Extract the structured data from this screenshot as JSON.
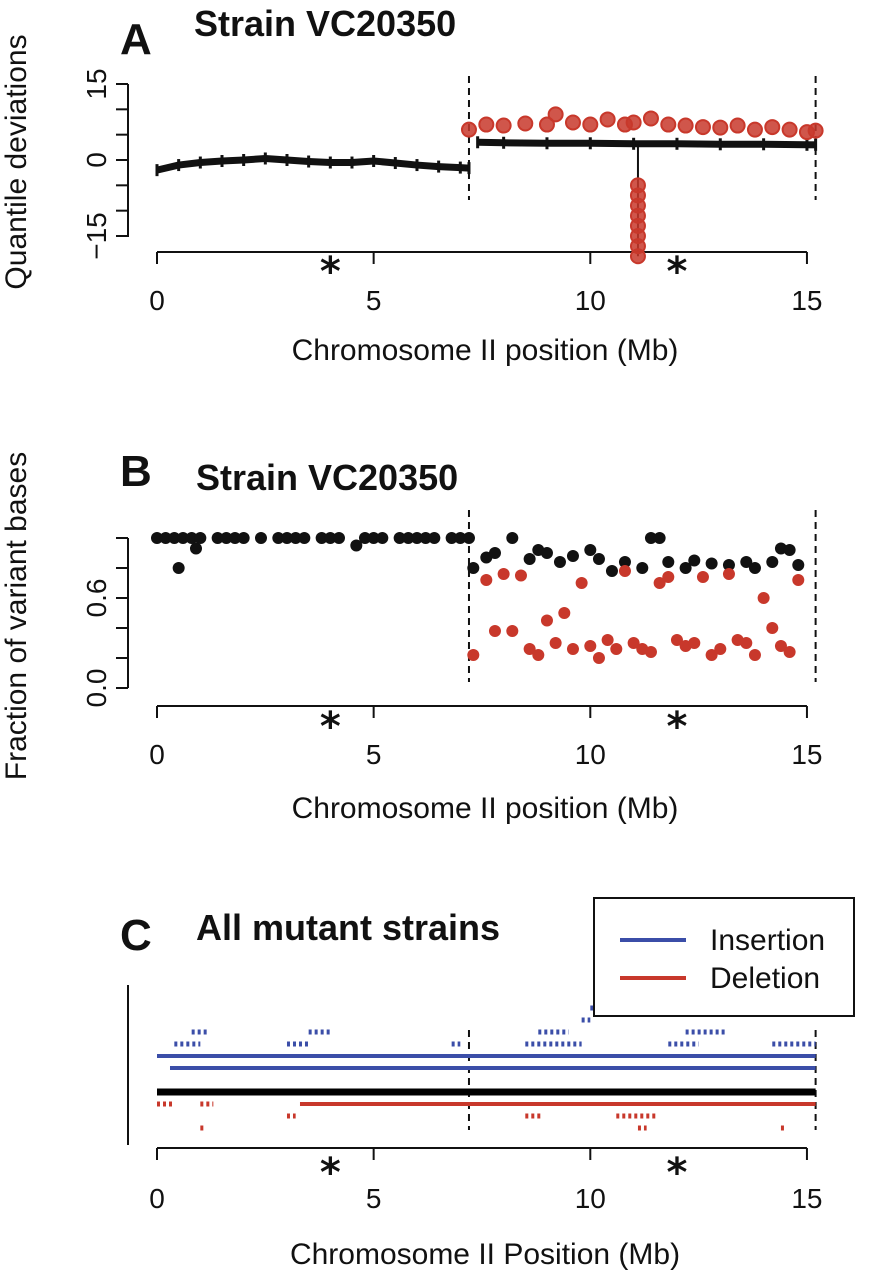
{
  "chart_data": [
    {
      "panel": "A",
      "type": "scatter",
      "title": "Strain VC20350",
      "xlabel": "Chromosome II position (Mb)",
      "ylabel": "Quantile deviations",
      "x_ticks": [
        "0",
        "5",
        "10",
        "15"
      ],
      "y_ticks": [
        "15",
        "0",
        "−15"
      ],
      "xlim": [
        0,
        15.5
      ],
      "ylim": [
        -15,
        15
      ],
      "region_boundaries": [
        7.2,
        15.2
      ],
      "stars_at": [
        4.0,
        12.0
      ],
      "series": [
        {
          "color": "#111111",
          "values": [
            [
              0.0,
              -2.0
            ],
            [
              0.5,
              -1.0
            ],
            [
              1.0,
              -0.5
            ],
            [
              1.5,
              -0.2
            ],
            [
              2.0,
              0.0
            ],
            [
              2.5,
              0.3
            ],
            [
              3.0,
              0.0
            ],
            [
              3.5,
              -0.3
            ],
            [
              4.0,
              -0.5
            ],
            [
              4.5,
              -0.5
            ],
            [
              5.0,
              -0.2
            ],
            [
              5.5,
              -0.6
            ],
            [
              6.0,
              -1.0
            ],
            [
              6.5,
              -1.3
            ],
            [
              7.0,
              -1.5
            ],
            [
              7.2,
              -1.6
            ],
            [
              7.4,
              3.5
            ],
            [
              8.0,
              3.4
            ],
            [
              9.0,
              3.3
            ],
            [
              10.0,
              3.3
            ],
            [
              11.0,
              3.2
            ],
            [
              12.0,
              3.2
            ],
            [
              13.0,
              3.1
            ],
            [
              14.0,
              3.1
            ],
            [
              15.0,
              3.0
            ],
            [
              15.2,
              3.0
            ]
          ]
        },
        {
          "color": "#c8382b",
          "values": [
            [
              7.2,
              6.0
            ],
            [
              7.6,
              7.0
            ],
            [
              8.0,
              6.8
            ],
            [
              8.5,
              7.2
            ],
            [
              9.0,
              7.0
            ],
            [
              9.2,
              9.0
            ],
            [
              9.6,
              7.4
            ],
            [
              10.0,
              7.0
            ],
            [
              10.4,
              8.0
            ],
            [
              10.8,
              7.0
            ],
            [
              11.0,
              7.4
            ],
            [
              11.4,
              8.2
            ],
            [
              11.8,
              7.0
            ],
            [
              12.2,
              6.8
            ],
            [
              12.6,
              6.5
            ],
            [
              13.0,
              6.4
            ],
            [
              13.4,
              6.8
            ],
            [
              13.8,
              6.0
            ],
            [
              14.2,
              6.5
            ],
            [
              14.6,
              6.0
            ],
            [
              15.0,
              5.5
            ],
            [
              15.2,
              5.8
            ],
            [
              11.1,
              -5.0
            ],
            [
              11.1,
              -7.0
            ],
            [
              11.1,
              -9.0
            ],
            [
              11.1,
              -11.0
            ],
            [
              11.1,
              -13.0
            ],
            [
              11.1,
              -15.0
            ],
            [
              11.1,
              -17.0
            ],
            [
              11.1,
              -19.0
            ]
          ]
        }
      ]
    },
    {
      "panel": "B",
      "type": "scatter",
      "title": "Strain VC20350",
      "xlabel": "Chromosome II position (Mb)",
      "ylabel": "Fraction of variant bases",
      "x_ticks": [
        "0",
        "5",
        "10",
        "15"
      ],
      "y_ticks": [
        "0.0",
        "0.6"
      ],
      "xlim": [
        0,
        15.5
      ],
      "ylim": [
        0,
        1
      ],
      "region_boundaries": [
        7.2,
        15.2
      ],
      "stars_at": [
        4.0,
        12.0
      ],
      "series": [
        {
          "color": "#111111",
          "values": [
            [
              0.0,
              1.0
            ],
            [
              0.2,
              1.0
            ],
            [
              0.4,
              1.0
            ],
            [
              0.5,
              0.8
            ],
            [
              0.6,
              1.0
            ],
            [
              0.8,
              1.0
            ],
            [
              0.9,
              0.93
            ],
            [
              1.0,
              1.0
            ],
            [
              1.4,
              1.0
            ],
            [
              1.6,
              1.0
            ],
            [
              1.8,
              1.0
            ],
            [
              2.0,
              1.0
            ],
            [
              2.4,
              1.0
            ],
            [
              2.8,
              1.0
            ],
            [
              3.0,
              1.0
            ],
            [
              3.2,
              1.0
            ],
            [
              3.4,
              1.0
            ],
            [
              3.8,
              1.0
            ],
            [
              4.0,
              1.0
            ],
            [
              4.2,
              1.0
            ],
            [
              4.6,
              0.95
            ],
            [
              4.8,
              1.0
            ],
            [
              5.0,
              1.0
            ],
            [
              5.2,
              1.0
            ],
            [
              5.6,
              1.0
            ],
            [
              5.8,
              1.0
            ],
            [
              6.0,
              1.0
            ],
            [
              6.2,
              1.0
            ],
            [
              6.4,
              1.0
            ],
            [
              6.8,
              1.0
            ],
            [
              7.0,
              1.0
            ],
            [
              7.2,
              1.0
            ],
            [
              7.3,
              0.8
            ],
            [
              7.6,
              0.87
            ],
            [
              7.8,
              0.9
            ],
            [
              8.2,
              1.0
            ],
            [
              8.6,
              0.86
            ],
            [
              8.8,
              0.92
            ],
            [
              9.0,
              0.9
            ],
            [
              9.3,
              0.84
            ],
            [
              9.6,
              0.88
            ],
            [
              10.0,
              0.92
            ],
            [
              10.2,
              0.86
            ],
            [
              10.5,
              0.78
            ],
            [
              10.8,
              0.84
            ],
            [
              11.2,
              0.8
            ],
            [
              11.4,
              1.0
            ],
            [
              11.6,
              1.0
            ],
            [
              11.8,
              0.84
            ],
            [
              12.2,
              0.8
            ],
            [
              12.4,
              0.85
            ],
            [
              12.8,
              0.83
            ],
            [
              13.2,
              0.82
            ],
            [
              13.6,
              0.84
            ],
            [
              13.8,
              0.8
            ],
            [
              14.2,
              0.84
            ],
            [
              14.4,
              0.93
            ],
            [
              14.6,
              0.92
            ],
            [
              14.8,
              0.82
            ]
          ]
        },
        {
          "color": "#c8382b",
          "values": [
            [
              7.3,
              0.22
            ],
            [
              7.6,
              0.72
            ],
            [
              7.8,
              0.38
            ],
            [
              8.0,
              0.76
            ],
            [
              8.2,
              0.38
            ],
            [
              8.4,
              0.75
            ],
            [
              8.6,
              0.26
            ],
            [
              8.8,
              0.22
            ],
            [
              9.0,
              0.45
            ],
            [
              9.2,
              0.3
            ],
            [
              9.4,
              0.5
            ],
            [
              9.6,
              0.26
            ],
            [
              9.8,
              0.7
            ],
            [
              10.0,
              0.28
            ],
            [
              10.2,
              0.2
            ],
            [
              10.4,
              0.32
            ],
            [
              10.6,
              0.26
            ],
            [
              10.8,
              0.78
            ],
            [
              11.0,
              0.3
            ],
            [
              11.2,
              0.26
            ],
            [
              11.4,
              0.24
            ],
            [
              11.6,
              0.7
            ],
            [
              11.8,
              0.74
            ],
            [
              12.0,
              0.32
            ],
            [
              12.2,
              0.28
            ],
            [
              12.4,
              0.3
            ],
            [
              12.6,
              0.74
            ],
            [
              12.8,
              0.22
            ],
            [
              13.0,
              0.26
            ],
            [
              13.2,
              0.76
            ],
            [
              13.4,
              0.32
            ],
            [
              13.6,
              0.3
            ],
            [
              13.8,
              0.22
            ],
            [
              14.0,
              0.6
            ],
            [
              14.2,
              0.4
            ],
            [
              14.4,
              0.28
            ],
            [
              14.6,
              0.24
            ],
            [
              14.8,
              0.72
            ]
          ]
        }
      ]
    },
    {
      "panel": "C",
      "type": "segments",
      "title": "All mutant strains",
      "xlabel": "Chromosome II Position (Mb)",
      "x_ticks": [
        "0",
        "5",
        "10",
        "15"
      ],
      "xlim": [
        0,
        15.5
      ],
      "region_boundaries": [
        7.2,
        15.2
      ],
      "stars_at": [
        4.0,
        12.0
      ],
      "legend_position": "top-right",
      "series": [
        {
          "name": "Insertion",
          "color": "#3b4ea8",
          "segments": [
            [
              0.0,
              15.2,
              6
            ],
            [
              0.3,
              15.2,
              5
            ],
            [
              7.2,
              15.2,
              6
            ],
            [
              0.4,
              1.0,
              7
            ],
            [
              3.0,
              3.5,
              7
            ],
            [
              6.8,
              7.0,
              7
            ],
            [
              8.5,
              9.8,
              7
            ],
            [
              11.8,
              12.5,
              7
            ],
            [
              14.2,
              15.2,
              7
            ],
            [
              0.8,
              1.2,
              8
            ],
            [
              3.5,
              4.0,
              8
            ],
            [
              8.8,
              9.5,
              8
            ],
            [
              12.2,
              13.1,
              8
            ],
            [
              9.8,
              10.0,
              9
            ],
            [
              10.0,
              10.1,
              10
            ]
          ]
        },
        {
          "name": "Deletion",
          "color": "#c8382b",
          "segments": [
            [
              3.3,
              15.2,
              2
            ],
            [
              0.0,
              0.4,
              2
            ],
            [
              1.0,
              1.3,
              2
            ],
            [
              3.0,
              3.2,
              1
            ],
            [
              8.5,
              8.9,
              1
            ],
            [
              10.6,
              11.5,
              1
            ],
            [
              11.1,
              11.3,
              0
            ],
            [
              1.0,
              1.1,
              0
            ],
            [
              14.4,
              14.5,
              0
            ]
          ]
        },
        {
          "name": "",
          "color": "#000000",
          "segments": [
            [
              0.0,
              15.2,
              3
            ]
          ]
        }
      ],
      "legend": [
        {
          "label": "Insertion",
          "color": "#3b4ea8"
        },
        {
          "label": "Deletion",
          "color": "#c8382b"
        }
      ]
    }
  ]
}
